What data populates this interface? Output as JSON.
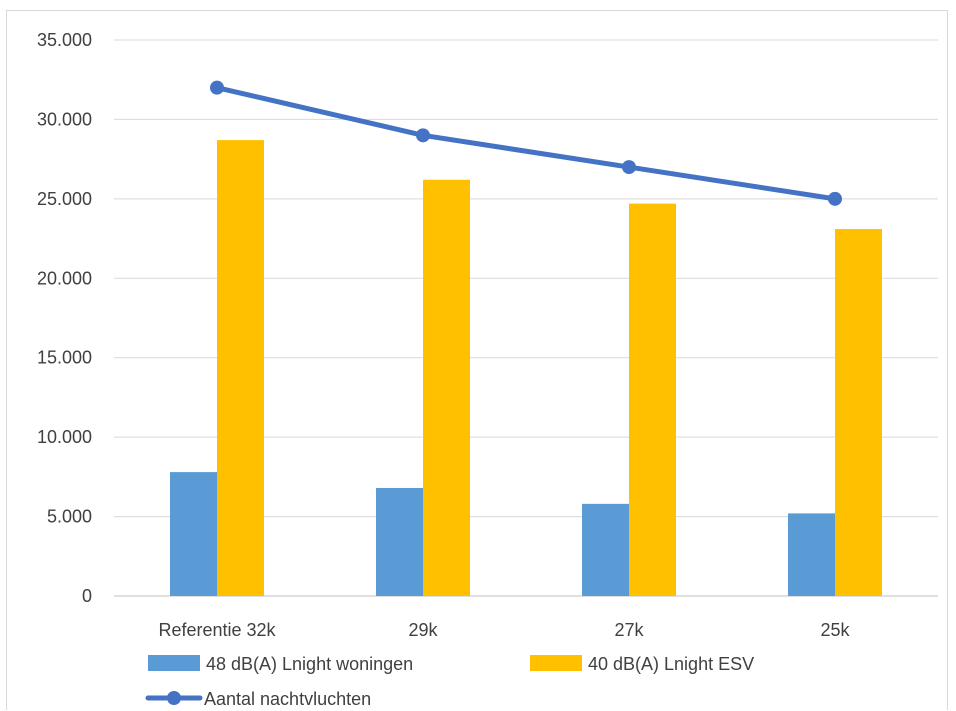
{
  "chart_data": {
    "type": "bar",
    "title": "",
    "xlabel": "",
    "ylabel": "",
    "categories": [
      "Referentie 32k",
      "29k",
      "27k",
      "25k"
    ],
    "ylim": [
      0,
      35000
    ],
    "yticks": [
      0,
      5000,
      10000,
      15000,
      20000,
      25000,
      30000,
      35000
    ],
    "ytick_labels": [
      "0",
      "5.000",
      "10.000",
      "15.000",
      "20.000",
      "25.000",
      "30.000",
      "35.000"
    ],
    "grid": "horizontal",
    "legend_position": "bottom",
    "series": [
      {
        "name": "48 dB(A) Lnight woningen",
        "kind": "bar",
        "color": "#5b9bd5",
        "values": [
          7800,
          6800,
          5800,
          5200
        ]
      },
      {
        "name": "40 dB(A) Lnight ESV",
        "kind": "bar",
        "color": "#ffc000",
        "values": [
          28700,
          26200,
          24700,
          23100
        ]
      },
      {
        "name": "Aantal nachtvluchten",
        "kind": "line",
        "marker": "circle",
        "color": "#4472c4",
        "values": [
          32000,
          29000,
          27000,
          25000
        ]
      }
    ]
  }
}
